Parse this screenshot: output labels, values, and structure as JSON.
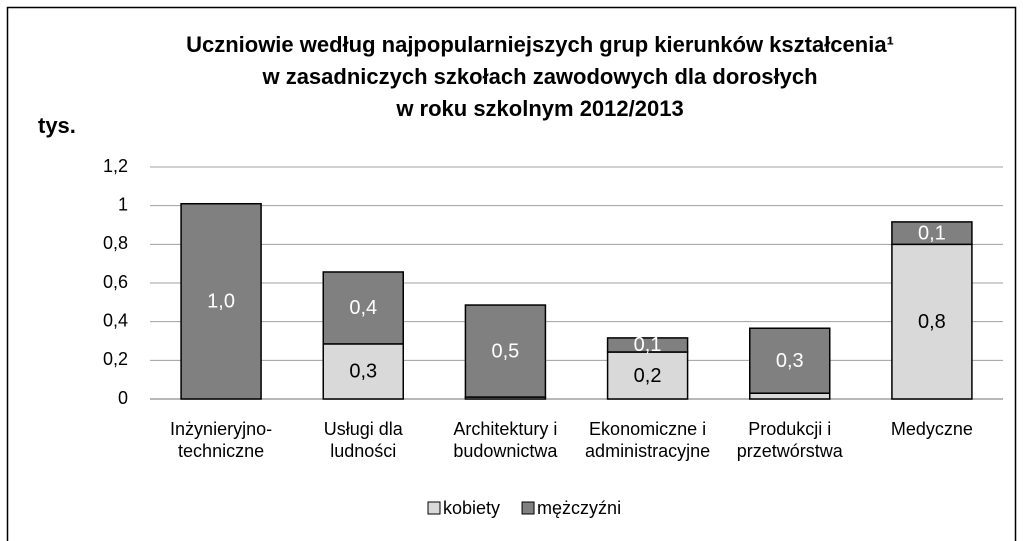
{
  "chart_data": {
    "type": "stacked_bar",
    "title": [
      "Uczniowie według najpopularniejszych grup kierunków kształcenia¹",
      "w zasadniczych szkołach zawodowych dla dorosłych",
      "w roku szkolnym 2012/2013"
    ],
    "y_label": "tys.",
    "categories": [
      "Inżynieryjno-\ntechniczne",
      "Usługi dla\nludności",
      "Architektury i\nbudownictwa",
      "Ekonomiczne i\nadministracyjne",
      "Produkcji i\nprzetwórstwa",
      "Medyczne"
    ],
    "series": [
      {
        "name": "kobiety",
        "color": "#d9d9d9",
        "values": [
          0,
          0.285,
          0.01,
          0.243,
          0.03,
          0.8
        ],
        "value_labels": [
          null,
          "0,3",
          null,
          "0,2",
          null,
          "0,8"
        ]
      },
      {
        "name": "mężczyźni",
        "color": "#808080",
        "values": [
          1.01,
          0.372,
          0.476,
          0.073,
          0.336,
          0.116
        ],
        "value_labels": [
          "1,0",
          "0,4",
          "0,5",
          "0,1",
          "0,3",
          "0,1"
        ]
      }
    ],
    "ylim": [
      0,
      1.2
    ],
    "yticks": [
      0,
      {
        "value": 0.2,
        "label": "0,2"
      },
      {
        "value": 0.4,
        "label": "0,4"
      },
      {
        "value": 0.6,
        "label": "0,6"
      },
      {
        "value": 0.8,
        "label": "0,8"
      },
      1,
      {
        "value": 1.2,
        "label": "1,2"
      }
    ],
    "grid": true,
    "legend": "bottom"
  }
}
